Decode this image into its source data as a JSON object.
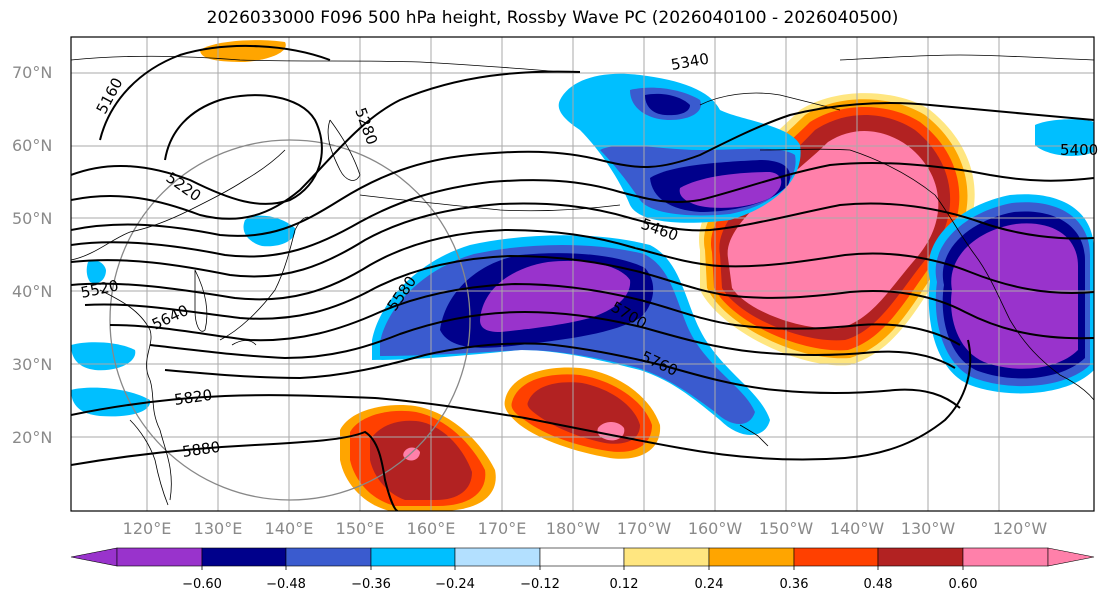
{
  "title": "2026033000 F096 500 hPa height, Rossby Wave PC (2026040100 - 2026040500)",
  "chart_data": {
    "type": "contour_map",
    "title": "2026033000 F096 500 hPa height, Rossby Wave PC (2026040100 - 2026040500)",
    "lat_ticks": [
      "20°N",
      "30°N",
      "40°N",
      "50°N",
      "60°N",
      "70°N"
    ],
    "lon_ticks": [
      "120°E",
      "130°E",
      "140°E",
      "150°E",
      "160°E",
      "170°E",
      "180°W",
      "170°W",
      "160°W",
      "150°W",
      "140°W",
      "130°W",
      "120°W"
    ],
    "height_contours_m": [
      {
        "value": "5160"
      },
      {
        "value": "5220"
      },
      {
        "value": "5280"
      },
      {
        "value": "5340"
      },
      {
        "value": "5400"
      },
      {
        "value": "5460"
      },
      {
        "value": "5520"
      },
      {
        "value": "5580"
      },
      {
        "value": "5640"
      },
      {
        "value": "5700"
      },
      {
        "value": "5760"
      },
      {
        "value": "5820"
      },
      {
        "value": "5880"
      }
    ],
    "colorbar": {
      "ticks": [
        "−0.60",
        "−0.48",
        "−0.36",
        "−0.24",
        "−0.12",
        "0.12",
        "0.24",
        "0.36",
        "0.48",
        "0.60"
      ],
      "colors": [
        "#9933CC",
        "#00008B",
        "#3A5BCF",
        "#00BFFF",
        "#B3E0FF",
        "#FFFFFF",
        "#FFE680",
        "#FFA500",
        "#FF4000",
        "#B22222",
        "#FF80AA"
      ]
    },
    "pc_anomalies": [
      {
        "sign": "positive",
        "peak": 0.6,
        "region": "Gulf of Alaska"
      },
      {
        "sign": "negative",
        "peak": -0.6,
        "region": "Northwest Pacific"
      },
      {
        "sign": "negative",
        "peak": -0.6,
        "region": "Western US"
      },
      {
        "sign": "negative",
        "peak": -0.6,
        "region": "Bering Sea / Alaska"
      },
      {
        "sign": "positive",
        "peak": 0.6,
        "region": "Central Pacific 20N"
      },
      {
        "sign": "positive",
        "peak": 0.6,
        "region": "West Pacific 18N"
      }
    ]
  }
}
